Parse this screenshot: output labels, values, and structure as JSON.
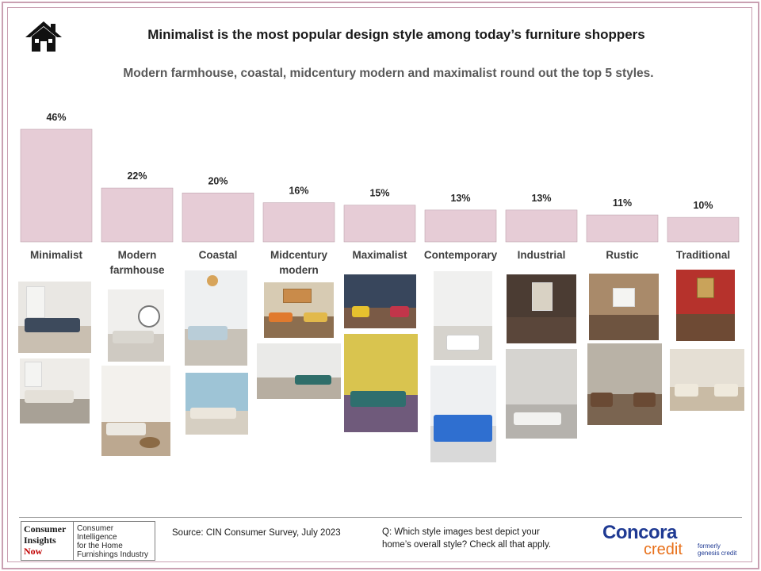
{
  "header": {
    "icon": "home-icon",
    "title": "Minimalist is the most popular design style among today’s furniture shoppers",
    "subtitle": "Modern farmhouse, coastal, midcentury modern and maximalist round out the top 5 styles."
  },
  "chart_data": {
    "type": "bar",
    "title": "Minimalist is the most popular design style among today’s furniture shoppers",
    "subtitle": "Modern farmhouse, coastal, midcentury modern and maximalist round out the top 5 styles.",
    "categories": [
      "Minimalist",
      "Modern farmhouse",
      "Coastal",
      "Midcentury modern",
      "Maximalist",
      "Contemporary",
      "Industrial",
      "Rustic",
      "Traditional"
    ],
    "category_lines": [
      [
        "Minimalist"
      ],
      [
        "Modern",
        "farmhouse"
      ],
      [
        "Coastal"
      ],
      [
        "Midcentury",
        "modern"
      ],
      [
        "Maximalist"
      ],
      [
        "Contemporary"
      ],
      [
        "Industrial"
      ],
      [
        "Rustic"
      ],
      [
        "Traditional"
      ]
    ],
    "values": [
      46,
      22,
      20,
      16,
      15,
      13,
      13,
      11,
      10
    ],
    "value_labels": [
      "46%",
      "22%",
      "20%",
      "16%",
      "15%",
      "13%",
      "13%",
      "11%",
      "10%"
    ],
    "ylim": [
      0,
      46
    ],
    "grid": false,
    "legend": "none",
    "bar_color": "#e6ccd6",
    "bar_border_color": "#bfa3ae"
  },
  "footer": {
    "logo_lines": [
      "Consumer",
      "Insights",
      "Now"
    ],
    "logo_tagline_lines": [
      "Consumer Intelligence",
      "for the Home",
      "Furnishings Industry"
    ],
    "source": "Source:  CIN Consumer Survey, July 2023",
    "question_lines": [
      "Q: Which style images best depict your",
      "home’s overall style? Check all that apply."
    ],
    "brand_name": "Concora",
    "brand_sub": "credit",
    "formerly_lines": [
      "formerly",
      "genesis credit"
    ]
  },
  "colors": {
    "frame": "#c9a0b2",
    "bar": "#e6ccd6",
    "brand_blue": "#1f3a93",
    "brand_orange": "#e8701a"
  }
}
